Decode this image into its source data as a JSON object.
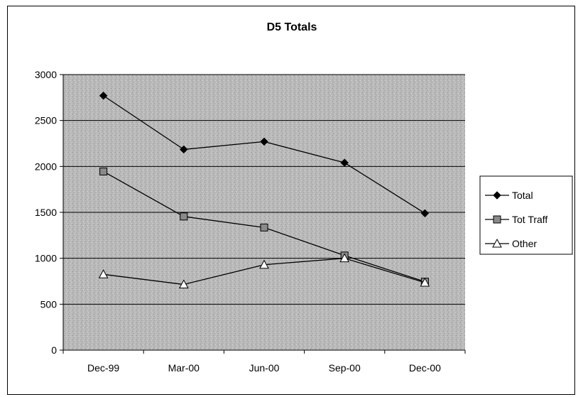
{
  "chart_data": {
    "type": "line",
    "title": "D5 Totals",
    "xlabel": "",
    "ylabel": "",
    "categories": [
      "Dec-99",
      "Mar-00",
      "Jun-00",
      "Sep-00",
      "Dec-00"
    ],
    "ylim": [
      0,
      3000
    ],
    "yticks": [
      0,
      500,
      1000,
      1500,
      2000,
      2500,
      3000
    ],
    "grid": "horizontal",
    "legend_position": "right",
    "series": [
      {
        "name": "Total",
        "marker": "diamond",
        "values": [
          2770,
          2185,
          2270,
          2040,
          1490
        ]
      },
      {
        "name": "Tot Traff",
        "marker": "square",
        "values": [
          1945,
          1455,
          1335,
          1030,
          745
        ]
      },
      {
        "name": "Other",
        "marker": "triangle",
        "values": [
          825,
          715,
          930,
          1000,
          735
        ]
      }
    ]
  }
}
